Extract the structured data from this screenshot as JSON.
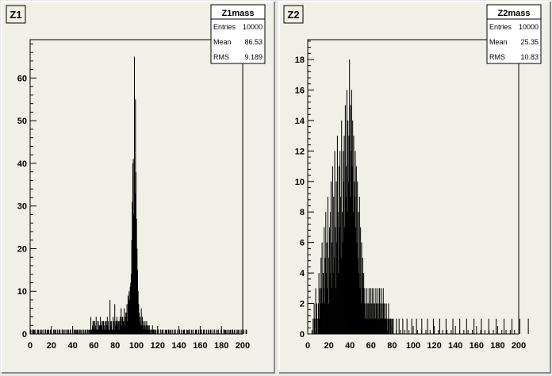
{
  "canvas_colors": {
    "background": "#e8e8e8",
    "pad": "#f0f0e6",
    "frame": "#000000",
    "bar": "#000000",
    "bevel_light": "#ffffff",
    "bevel_dark": "#8a8a8a"
  },
  "chart_data": [
    {
      "type": "bar",
      "pad_label": "Z1",
      "title": "",
      "xlabel": "",
      "ylabel": "",
      "xlim": [
        0,
        200
      ],
      "ylim": [
        0,
        69
      ],
      "x_ticks": [
        0,
        20,
        40,
        60,
        80,
        100,
        120,
        140,
        160,
        180,
        200
      ],
      "y_ticks": [
        0,
        10,
        20,
        30,
        40,
        50,
        60
      ],
      "grid": false,
      "stats": {
        "name": "Z1mass",
        "entries_label": "Entries",
        "entries": "10000",
        "mean_label": "Mean",
        "mean": "86.53",
        "rms_label": "RMS",
        "rms": "9.189"
      },
      "bins": {
        "x_start": 0,
        "width": 0.5
      },
      "counts": [
        1,
        1,
        0,
        0,
        1,
        0,
        1,
        1,
        0,
        0,
        1,
        0,
        0,
        0,
        1,
        1,
        0,
        0,
        0,
        1,
        0,
        1,
        0,
        0,
        1,
        0,
        0,
        0,
        1,
        1,
        0,
        0,
        0,
        1,
        0,
        1,
        0,
        0,
        1,
        1,
        0,
        0,
        0,
        0,
        1,
        0,
        1,
        1,
        0,
        0,
        0,
        1,
        0,
        0,
        1,
        0,
        1,
        0,
        0,
        0,
        1,
        1,
        0,
        0,
        1,
        0,
        0,
        1,
        0,
        0,
        1,
        0,
        1,
        0,
        0,
        1,
        1,
        0,
        0,
        0,
        1,
        0,
        0,
        1,
        1,
        0,
        1,
        0,
        0,
        1,
        1,
        0,
        0,
        1,
        0,
        1,
        0,
        0,
        0,
        1,
        0,
        1,
        0,
        0,
        1,
        1,
        0,
        0,
        1,
        0,
        1,
        0,
        0,
        1,
        4,
        1,
        1,
        2,
        3,
        1,
        3,
        3,
        1,
        2,
        4,
        1,
        1,
        3,
        3,
        1,
        2,
        2,
        4,
        2,
        2,
        3,
        1,
        3,
        3,
        1,
        2,
        3,
        1,
        3,
        2,
        4,
        2,
        3,
        1,
        1,
        8,
        3,
        2,
        3,
        1,
        1,
        4,
        3,
        1,
        7,
        1,
        3,
        3,
        4,
        2,
        3,
        3,
        1,
        3,
        4,
        3,
        6,
        2,
        4,
        4,
        3,
        3,
        6,
        2,
        4,
        5,
        5,
        7,
        3,
        9,
        8,
        10,
        8,
        11,
        12,
        14,
        22,
        31,
        40,
        41,
        28,
        65,
        33,
        55,
        38,
        27,
        20,
        15,
        10,
        7,
        5,
        3,
        4,
        2,
        6,
        2,
        4,
        2,
        3,
        1,
        2,
        3,
        1,
        2,
        3,
        1,
        2,
        2,
        1,
        2,
        1,
        0,
        1,
        1,
        0,
        2,
        1,
        1,
        1,
        0,
        1,
        1,
        0,
        0,
        1,
        1,
        1,
        0,
        0,
        0,
        1,
        0,
        0,
        1,
        0,
        1,
        0,
        0,
        0,
        1,
        0,
        0,
        1,
        0,
        0,
        1,
        1,
        0,
        0,
        0,
        1,
        0,
        0,
        1,
        0,
        0,
        0,
        1,
        1,
        0,
        0,
        0,
        1,
        0,
        0,
        0,
        1,
        0,
        0,
        1,
        0,
        0,
        0,
        0,
        1,
        1,
        0,
        0,
        0,
        1,
        0,
        0,
        0,
        1,
        0,
        1,
        0,
        0,
        0,
        1,
        0,
        0,
        1,
        0,
        0,
        0,
        1,
        0,
        1,
        0,
        0,
        0,
        1,
        0,
        0,
        0,
        1,
        1,
        0,
        0,
        0,
        1,
        0,
        1,
        0,
        0,
        0,
        1,
        0,
        0,
        1,
        0,
        0,
        0,
        1,
        1,
        0,
        0,
        0,
        1,
        0,
        0,
        1,
        0,
        0,
        0,
        1,
        0,
        0,
        1,
        0,
        0,
        0,
        0,
        1,
        1,
        0,
        0,
        0,
        1,
        0,
        1,
        0,
        0,
        0,
        1,
        0,
        0,
        1,
        0,
        0,
        0,
        1,
        0,
        0,
        1,
        1,
        0,
        0,
        0,
        1,
        0,
        0,
        0,
        1,
        0,
        1,
        0,
        0,
        0,
        1,
        0,
        0,
        1,
        0,
        0,
        0,
        1,
        0,
        0,
        0,
        1,
        1,
        0,
        0
      ]
    },
    {
      "type": "bar",
      "pad_label": "Z2",
      "title": "",
      "xlabel": "",
      "ylabel": "",
      "xlim": [
        0,
        200
      ],
      "ylim": [
        0,
        19.3
      ],
      "x_ticks": [
        0,
        20,
        40,
        60,
        80,
        100,
        120,
        140,
        160,
        180,
        200
      ],
      "y_ticks": [
        0,
        2,
        4,
        6,
        8,
        10,
        12,
        14,
        16,
        18
      ],
      "grid": false,
      "stats": {
        "name": "Z2mass",
        "entries_label": "Entries",
        "entries": "10000",
        "mean_label": "Mean",
        "mean": "25.35",
        "rms_label": "RMS",
        "rms": "10.83"
      },
      "bins": {
        "x_start": 0,
        "width": 0.5
      },
      "counts": [
        0,
        0,
        0,
        0,
        0,
        0,
        0,
        0,
        0,
        0,
        1,
        0,
        2,
        1,
        0,
        3,
        1,
        2,
        1,
        0,
        2,
        4,
        1,
        3,
        2,
        5,
        3,
        6,
        2,
        4,
        3,
        7,
        2,
        5,
        8,
        4,
        6,
        3,
        9,
        5,
        2,
        7,
        4,
        8,
        10,
        3,
        6,
        11,
        4,
        9,
        5,
        12,
        7,
        3,
        10,
        6,
        13,
        8,
        4,
        11,
        7,
        12,
        9,
        5,
        14,
        8,
        6,
        12,
        10,
        13,
        7,
        15,
        9,
        11,
        16,
        8,
        14,
        10,
        13,
        18,
        9,
        15,
        12,
        16,
        11,
        14,
        8,
        13,
        10,
        9,
        12,
        7,
        11,
        6,
        10,
        5,
        8,
        4,
        9,
        3,
        7,
        2,
        6,
        4,
        5,
        3,
        4,
        2,
        3,
        1,
        2,
        1,
        3,
        2,
        1,
        2,
        3,
        1,
        2,
        3,
        1,
        2,
        3,
        1,
        2,
        3,
        1,
        2,
        1,
        3,
        2,
        1,
        2,
        3,
        1,
        2,
        3,
        1,
        2,
        3,
        1,
        2,
        1,
        3,
        2,
        1,
        2,
        1,
        1,
        2,
        1,
        0,
        1,
        2,
        1,
        1,
        0,
        1,
        1,
        0,
        1,
        0,
        1,
        0,
        0,
        0,
        0,
        0,
        1,
        0,
        0,
        0,
        0,
        1,
        0,
        0,
        0,
        0,
        0,
        0,
        1,
        0,
        0,
        0,
        0,
        0,
        0,
        0,
        1,
        0,
        0,
        0,
        0,
        0,
        0,
        0,
        0,
        1,
        0,
        0,
        0,
        0,
        0,
        0,
        0,
        0,
        1,
        0,
        0,
        0,
        0,
        0,
        0,
        0,
        0,
        0,
        1,
        0,
        0,
        0,
        0,
        0,
        0,
        0,
        0,
        0,
        0,
        1,
        0,
        0,
        0,
        0,
        0,
        0,
        0,
        0,
        0,
        0,
        1,
        0,
        0,
        0,
        0,
        0,
        0,
        0,
        0,
        0,
        0,
        0,
        1,
        0,
        0,
        0,
        0,
        0,
        0,
        0,
        0,
        0,
        0,
        0,
        1,
        0,
        0,
        0,
        0,
        0,
        0,
        0,
        0,
        0,
        0,
        0,
        0,
        1,
        0,
        0,
        0,
        0,
        0,
        0,
        0,
        0,
        0,
        0,
        0,
        0,
        1,
        0,
        0,
        0,
        0,
        0,
        0,
        0,
        0,
        0,
        0,
        0,
        0,
        1,
        0,
        0,
        0,
        0,
        0,
        0,
        0,
        0,
        0,
        0,
        0,
        0,
        0,
        1,
        0,
        0,
        0,
        0,
        0,
        0,
        0,
        0,
        0,
        0,
        0,
        0,
        0,
        1,
        0,
        0,
        0,
        0,
        0,
        0,
        0,
        0,
        0,
        0,
        0,
        0,
        0,
        1,
        0,
        0,
        0,
        0,
        0,
        0,
        0,
        0,
        0,
        0,
        0,
        0,
        0,
        1,
        0,
        0,
        0,
        0,
        0,
        0,
        0,
        0,
        0,
        0,
        0,
        0,
        0,
        0,
        1,
        0,
        0,
        0,
        0,
        0,
        0,
        0,
        0,
        0,
        0,
        0,
        0,
        0,
        0,
        1,
        0,
        0,
        0,
        0,
        0,
        0,
        0,
        0,
        0,
        0,
        0,
        0,
        0,
        0,
        1,
        0,
        0,
        0,
        0,
        0,
        0,
        0,
        0,
        0,
        0,
        0,
        0,
        0,
        0,
        0,
        1,
        0,
        0,
        0,
        0,
        0,
        0,
        0,
        0,
        0,
        0
      ]
    }
  ]
}
